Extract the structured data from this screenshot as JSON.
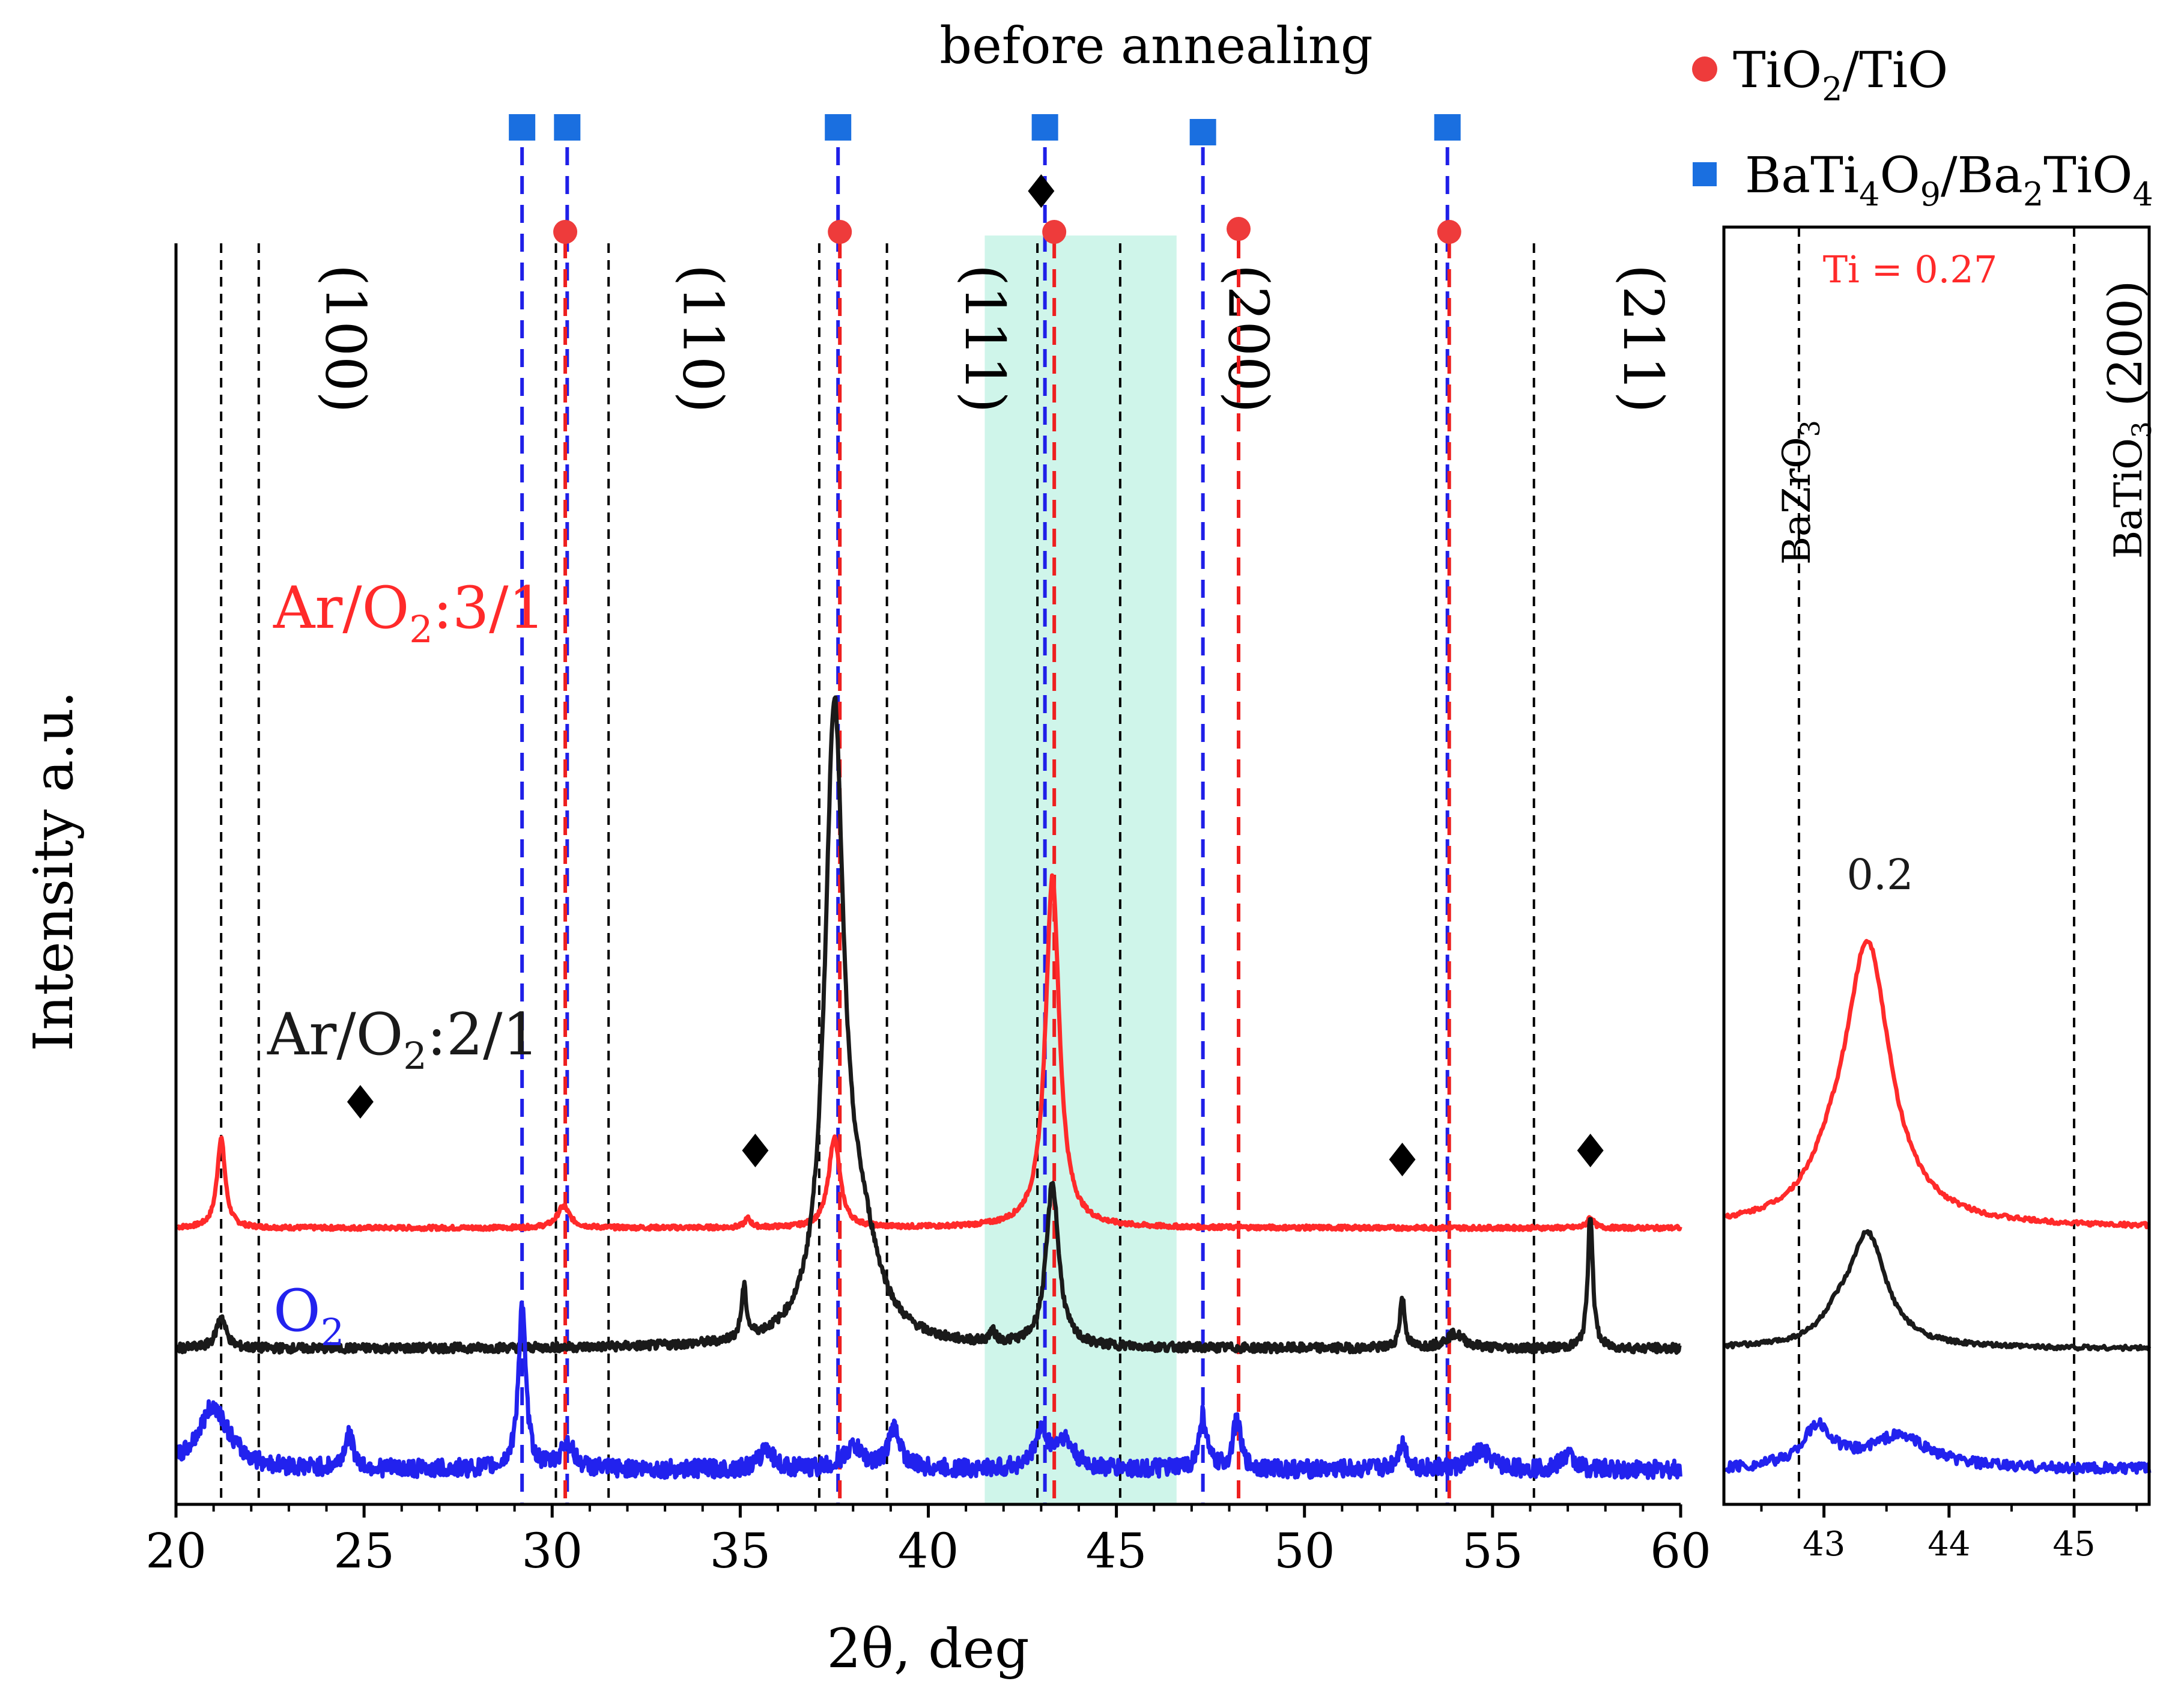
{
  "title": "before annealing",
  "colors": {
    "red": "#ff2a2a",
    "black": "#1a1a1a",
    "blue": "#2222ee",
    "tio_marker": "#ee3b3b",
    "bati_marker": "#1a6fe0",
    "highlight": "#cff5ea"
  },
  "legend": [
    {
      "marker": "circle",
      "color": "#ee3b3b",
      "label": "TiO2/TiO"
    },
    {
      "marker": "square",
      "color": "#1a6fe0",
      "label": "BaTi4O9/Ba2TiO4"
    }
  ],
  "chart_data": [
    {
      "type": "line",
      "xlabel": "2θ, deg",
      "ylabel": "Intensity a.u.",
      "xlim": [
        20,
        60
      ],
      "xticks": [
        20,
        25,
        30,
        35,
        40,
        45,
        50,
        55,
        60
      ],
      "highlight_range": [
        41.5,
        46.6
      ],
      "reflections": [
        {
          "label": "(100)",
          "x": 24.0,
          "dashed_lines": [
            21.2,
            22.2
          ]
        },
        {
          "label": "(110)",
          "x": 33.5,
          "dashed_lines": [
            30.1,
            31.5
          ]
        },
        {
          "label": "(111)",
          "x": 41.0,
          "dashed_lines": [
            37.1,
            38.9
          ]
        },
        {
          "label": "(200)",
          "x": 48.0,
          "dashed_lines": [
            42.9,
            45.1
          ]
        },
        {
          "label": "(211)",
          "x": 58.5,
          "dashed_lines": [
            53.5,
            56.1
          ]
        }
      ],
      "tio_lines": [
        30.3,
        37.6,
        43.3,
        48.2,
        53.8
      ],
      "bati_lines": [
        29.2,
        30.4,
        37.6,
        43.1,
        47.3,
        53.8
      ],
      "diamonds": [
        {
          "x": 24.9,
          "y": 2.22
        },
        {
          "x": 35.4,
          "y": 1.95
        },
        {
          "x": 43.0,
          "y": 3.45
        },
        {
          "x": 52.6,
          "y": 1.9
        },
        {
          "x": 57.6,
          "y": 1.95
        }
      ],
      "series": [
        {
          "name": "Ar/O2:3/1",
          "color": "#ff2a2a",
          "baseline": 1.52,
          "peaks": [
            [
              21.2,
              0.5,
              0.13
            ],
            [
              30.3,
              0.12,
              0.2
            ],
            [
              35.2,
              0.05,
              0.1
            ],
            [
              37.5,
              0.5,
              0.18
            ],
            [
              43.3,
              1.95,
              0.22
            ],
            [
              57.6,
              0.06,
              0.1
            ]
          ]
        },
        {
          "name": "Ar/O2:2/1",
          "color": "#1a1a1a",
          "baseline": 0.85,
          "peaks": [
            [
              21.2,
              0.18,
              0.15
            ],
            [
              35.1,
              0.28,
              0.08
            ],
            [
              37.5,
              3.4,
              0.3
            ],
            [
              38.2,
              0.5,
              0.6
            ],
            [
              41.7,
              0.06,
              0.1
            ],
            [
              43.3,
              0.9,
              0.2
            ],
            [
              52.6,
              0.28,
              0.08
            ],
            [
              54.0,
              0.08,
              0.3
            ],
            [
              57.6,
              0.75,
              0.08
            ]
          ]
        },
        {
          "name": "O2",
          "color": "#2222ee",
          "baseline": 0.18,
          "peaks": [
            [
              21.0,
              0.35,
              0.5
            ],
            [
              24.6,
              0.18,
              0.15
            ],
            [
              29.2,
              0.9,
              0.12
            ],
            [
              30.4,
              0.15,
              0.2
            ],
            [
              35.7,
              0.12,
              0.2
            ],
            [
              38.0,
              0.12,
              0.3
            ],
            [
              39.1,
              0.22,
              0.2
            ],
            [
              43.0,
              0.2,
              0.2
            ],
            [
              43.6,
              0.16,
              0.3
            ],
            [
              47.3,
              0.3,
              0.12
            ],
            [
              48.2,
              0.28,
              0.12
            ],
            [
              52.6,
              0.14,
              0.15
            ],
            [
              54.7,
              0.1,
              0.3
            ],
            [
              57.0,
              0.08,
              0.2
            ]
          ]
        }
      ],
      "series_labels": [
        {
          "series": "Ar/O2:3/1",
          "text": "Ar/O2:3/1"
        },
        {
          "series": "Ar/O2:2/1",
          "text": "Ar/O2:2/1"
        },
        {
          "series": "O2",
          "text": "O2"
        }
      ]
    },
    {
      "type": "line",
      "xlim": [
        42.2,
        45.6
      ],
      "xticks": [
        43,
        44,
        45
      ],
      "reference_lines": [
        {
          "x": 42.8,
          "label": "BaZrO3"
        },
        {
          "x": 45.0,
          "label": "BaTiO3 (200)"
        }
      ],
      "series": [
        {
          "name": "Ti = 0.27",
          "color": "#ff2a2a",
          "baseline": 1.52,
          "peaks": [
            [
              43.35,
              1.55,
              0.22
            ],
            [
              43.05,
              0.15,
              0.2
            ]
          ]
        },
        {
          "name": "0.2",
          "color": "#1a1a1a",
          "baseline": 0.85,
          "peaks": [
            [
              43.35,
              0.62,
              0.18
            ],
            [
              43.1,
              0.1,
              0.15
            ]
          ]
        },
        {
          "name": "",
          "color": "#2222ee",
          "baseline": 0.18,
          "peaks": [
            [
              42.95,
              0.22,
              0.15
            ],
            [
              43.6,
              0.18,
              0.3
            ]
          ]
        }
      ],
      "annotations": [
        {
          "text": "Ti = 0.27",
          "x": 43.3,
          "color": "#ff2a2a"
        },
        {
          "text": "0.2",
          "x": 43.3,
          "color": "#1a1a1a"
        }
      ]
    }
  ]
}
